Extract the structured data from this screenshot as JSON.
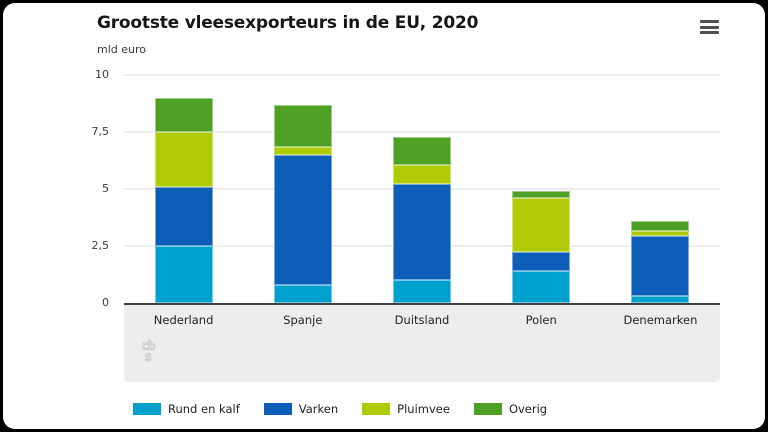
{
  "frame": {
    "outer_bg": "#000000",
    "card_bg": "#ffffff"
  },
  "header": {
    "title": "Grootste vleesexporteurs in de EU, 2020",
    "unit_label": "mld euro",
    "menu_icon": "hamburger-menu-icon"
  },
  "chart_data": {
    "type": "bar",
    "stacked": true,
    "title": "Grootste vleesexporteurs in de EU, 2020",
    "ylabel": "mld euro",
    "ylim": [
      0,
      10
    ],
    "yticks": [
      "0",
      "2,5",
      "5",
      "7,5",
      "10"
    ],
    "ytick_values": [
      0,
      2.5,
      5,
      7.5,
      10
    ],
    "grid": true,
    "legend_position": "bottom",
    "categories": [
      "Nederland",
      "Spanje",
      "Duitsland",
      "Polen",
      "Denemarken"
    ],
    "series": [
      {
        "name": "Rund en kalf",
        "color": "#00a1cd",
        "values": [
          2.5,
          0.8,
          1.0,
          1.4,
          0.3
        ]
      },
      {
        "name": "Varken",
        "color": "#0d5eb8",
        "values": [
          2.6,
          5.7,
          4.2,
          0.85,
          2.65
        ]
      },
      {
        "name": "Pluimvee",
        "color": "#afcb05",
        "values": [
          2.4,
          0.35,
          0.85,
          2.35,
          0.2
        ]
      },
      {
        "name": "Overig",
        "color": "#4fa125",
        "values": [
          1.5,
          1.85,
          1.25,
          0.3,
          0.45
        ]
      }
    ]
  },
  "footer": {
    "logo_line1": "cb",
    "logo_line2": "s",
    "logo_name": "cbs-logo"
  }
}
